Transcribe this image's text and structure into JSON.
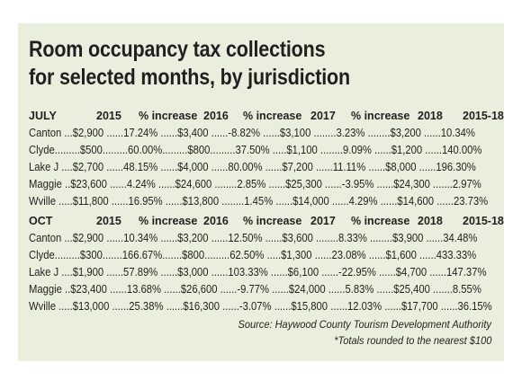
{
  "title_line1": "Room occupancy tax collections",
  "title_line2": "for selected months, by jurisdiction",
  "july": {
    "header": [
      "JULY",
      "2015",
      "% increase",
      "2016",
      "% increase",
      "2017",
      "% increase",
      "2018",
      "2015-18"
    ],
    "rows": [
      "Canton ...$2,900 ......17.24% ......$3,400 ......-8.82% ......$3,100 ........3.23% ........$3,200 ......10.34%",
      "Clyde.........$500.........60.00%.........$800.........37.50% .....$1,100 ........9.09% ......$1,200 ......140.00%",
      "Lake J ....$2,700 ......48.15% ......$4,000 ......80.00% ......$7,200 ......11.11% ......$8,000 ......196.30%",
      "Maggie ..$23,600 ......4.24% ......$24,600 ........2.85% ......$25,300 ......-3.95% ......$24,300 .......2.97%",
      "Wville .....$11,800 ......16.95% ......$13,800 ........1.45% ......$14,000 ......4.29% ......$14,600 ......23.73%"
    ]
  },
  "oct": {
    "header": [
      "OCT",
      "2015",
      "% increase",
      "2016",
      "% increase",
      "2017",
      "% increase",
      "2018",
      "2015-18"
    ],
    "rows": [
      "Canton ...$2,900 ......10.34% ......$3,200 ......12.50% ......$3,600 ........8.33% ........$3,900 ......34.48%",
      "Clyde.........$300.......166.67%.......$800.........62.50% .....$1,300 ......23.08% ......$1,600 ......433.33%",
      "Lake J ....$1,900 ......57.89% ......$3,000 ......103.33% ......$6,100 ......-22.95% ......$4,700 ......147.37%",
      "Maggie ..$23,400 ......13.68% ......$26,600 ......-9.77% ......$24,000 ......5.83% ......$25,400 .......8.55%",
      "Wville .....$13,000 ......25.38% ......$16,300 ......-3.07% ......$15,800 ......12.03% ......$17,700 ......36.15%"
    ]
  },
  "source": "Source: Haywood County Tourism Development Authority",
  "footnote": "*Totals rounded to the nearest $100"
}
